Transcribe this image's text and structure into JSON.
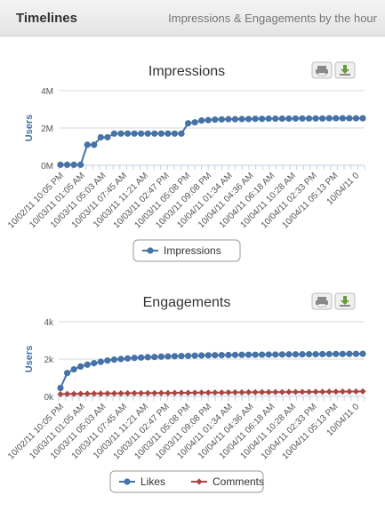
{
  "header": {
    "title": "Timelines",
    "subtitle": "Impressions & Engagements by the hour"
  },
  "export_icons": [
    "print-icon",
    "download-icon"
  ],
  "colors": {
    "blue": "#4572a7",
    "red": "#aa4643",
    "grid": "#d8d8d8",
    "axis": "#c0d0e0"
  },
  "chart_data": [
    {
      "type": "line",
      "title": "Impressions",
      "ylabel": "Users",
      "ylim": [
        0,
        4000000
      ],
      "yticks": [
        0,
        2000000,
        4000000
      ],
      "ytick_labels": [
        "0M",
        "2M",
        "4M"
      ],
      "xtick_labels": [
        "10/02/11 10:05 PM",
        "10/03/11 01:05 AM",
        "10/03/11 05:03 AM",
        "10/03/11 07:45 AM",
        "10/03/11 11:21 AM",
        "10/03/11 02:47 PM",
        "10/03/11 05:08 PM",
        "10/03/11 09:08 PM",
        "10/04/11 01:34 AM",
        "10/04/11 04:36 AM",
        "10/04/11 06:18 AM",
        "10/04/11 10:28 AM",
        "10/04/11 02:33 PM",
        "10/04/11 05:13 PM",
        "10/04/11 0"
      ],
      "legend": "bottom",
      "series": [
        {
          "name": "Impressions",
          "values": [
            30000,
            30000,
            30000,
            30000,
            1100000,
            1100000,
            1500000,
            1500000,
            1700000,
            1700000,
            1700000,
            1700000,
            1700000,
            1700000,
            1700000,
            1700000,
            1700000,
            1700000,
            1700000,
            2250000,
            2300000,
            2400000,
            2420000,
            2450000,
            2460000,
            2470000,
            2470000,
            2480000,
            2480000,
            2490000,
            2490000,
            2500000,
            2500000,
            2500000,
            2500000,
            2510000,
            2510000,
            2510000,
            2510000,
            2510000,
            2520000,
            2520000,
            2520000,
            2520000,
            2520000,
            2520000
          ]
        }
      ]
    },
    {
      "type": "line",
      "title": "Engagements",
      "ylabel": "Users",
      "ylim": [
        0,
        4000
      ],
      "yticks": [
        0,
        2000,
        4000
      ],
      "ytick_labels": [
        "0k",
        "2k",
        "4k"
      ],
      "xtick_labels": [
        "10/02/11 10:05 PM",
        "10/03/11 01:05 AM",
        "10/03/11 05:03 AM",
        "10/03/11 07:45 AM",
        "10/03/11 11:21 AM",
        "10/03/11 02:47 PM",
        "10/03/11 05:08 PM",
        "10/03/11 09:08 PM",
        "10/04/11 01:34 AM",
        "10/04/11 04:36 AM",
        "10/04/11 06:18 AM",
        "10/04/11 10:28 AM",
        "10/04/11 02:33 PM",
        "10/04/11 05:13 PM",
        "10/04/11 0"
      ],
      "legend": "bottom",
      "series": [
        {
          "name": "Likes",
          "values": [
            450,
            1250,
            1450,
            1600,
            1700,
            1780,
            1850,
            1920,
            1970,
            2000,
            2030,
            2060,
            2080,
            2100,
            2110,
            2130,
            2140,
            2150,
            2160,
            2170,
            2180,
            2190,
            2200,
            2205,
            2210,
            2215,
            2220,
            2225,
            2230,
            2230,
            2235,
            2240,
            2240,
            2245,
            2250,
            2250,
            2255,
            2260,
            2260,
            2265,
            2265,
            2270,
            2270,
            2275,
            2275,
            2280
          ]
        },
        {
          "name": "Comments",
          "values": [
            120,
            130,
            135,
            140,
            145,
            150,
            150,
            155,
            160,
            160,
            165,
            170,
            170,
            175,
            175,
            180,
            180,
            185,
            190,
            190,
            195,
            200,
            200,
            205,
            205,
            210,
            215,
            215,
            220,
            220,
            225,
            225,
            230,
            230,
            235,
            235,
            240,
            240,
            245,
            245,
            250,
            250,
            255,
            255,
            260,
            265
          ]
        }
      ]
    }
  ]
}
